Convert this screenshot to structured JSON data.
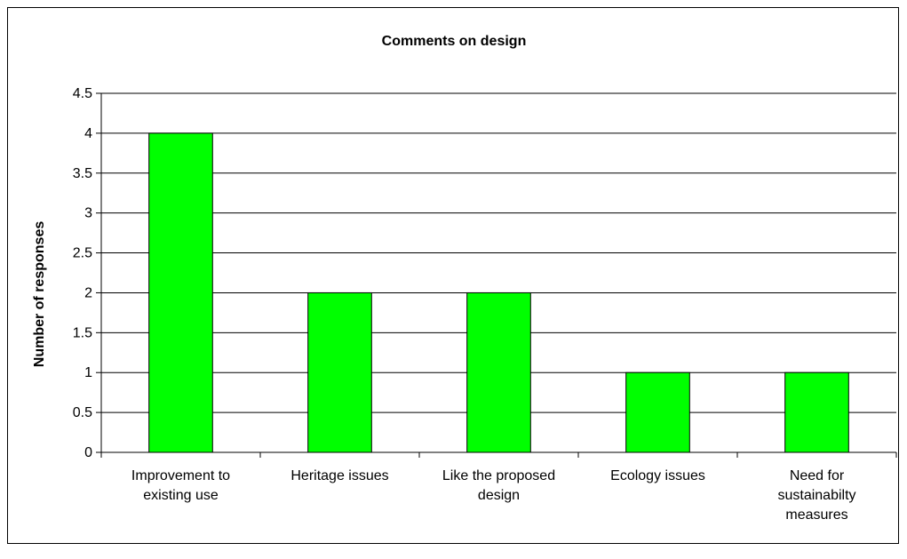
{
  "chart_data": {
    "type": "bar",
    "title": "Comments on design",
    "xlabel": "",
    "ylabel": "Number of responses",
    "categories": [
      [
        "Improvement to",
        "existing use"
      ],
      [
        "Heritage issues"
      ],
      [
        "Like the proposed",
        "design"
      ],
      [
        "Ecology issues"
      ],
      [
        "Need for",
        "sustainabilty",
        "measures"
      ]
    ],
    "values": [
      4,
      2,
      2,
      1,
      1
    ],
    "ylim": [
      0,
      4.5
    ],
    "yticks": [
      "0",
      "0.5",
      "1",
      "1.5",
      "2",
      "2.5",
      "3",
      "3.5",
      "4",
      "4.5"
    ],
    "grid": true,
    "legend": "none",
    "colors": {
      "bar_fill": "#00ff00",
      "bar_stroke": "#000000",
      "gridline": "#000000",
      "axis": "#000000"
    }
  }
}
